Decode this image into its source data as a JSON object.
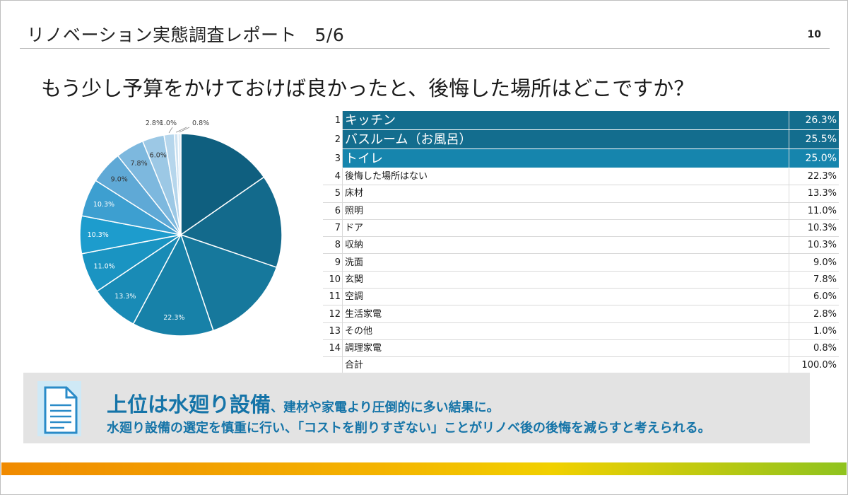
{
  "header": {
    "title": "リノベーション実態調査レポート　5/6",
    "page_number": "10"
  },
  "question": "もう少し予算をかけておけば良かったと、後悔した場所はどこですか？",
  "chart_data": {
    "type": "pie",
    "slices": [
      {
        "label": "キッチン",
        "value": 26.3,
        "display": "26.3%",
        "color": "#0f5f7f"
      },
      {
        "label": "バスルーム（お風呂）",
        "value": 25.5,
        "display": "25.5%",
        "color": "#136a8c"
      },
      {
        "label": "トイレ",
        "value": 25.0,
        "display": "25.0%",
        "color": "#16789c"
      },
      {
        "label": "後悔した場所はない",
        "value": 22.3,
        "display": "22.3%",
        "color": "#1781a8"
      },
      {
        "label": "床材",
        "value": 13.3,
        "display": "13.3%",
        "color": "#198bb6"
      },
      {
        "label": "照明",
        "value": 11.0,
        "display": "11.0%",
        "color": "#1a94c2"
      },
      {
        "label": "ドア",
        "value": 10.3,
        "display": "10.3%",
        "color": "#1d9ccd"
      },
      {
        "label": "収納",
        "value": 10.3,
        "display": "10.3%",
        "color": "#3d9fd0"
      },
      {
        "label": "洗面",
        "value": 9.0,
        "display": "9.0%",
        "color": "#5fa9d6"
      },
      {
        "label": "玄関",
        "value": 7.8,
        "display": "7.8%",
        "color": "#7db8de"
      },
      {
        "label": "空調",
        "value": 6.0,
        "display": "6.0%",
        "color": "#9cc8e5"
      },
      {
        "label": "生活家電",
        "value": 2.8,
        "display": "2.8%",
        "color": "#b6d6ec"
      },
      {
        "label": "その他",
        "value": 1.0,
        "display": "1.0%",
        "color": "#cde2f1"
      },
      {
        "label": "調理家電",
        "value": 0.8,
        "display": "0.8%",
        "color": "#e0edf7"
      }
    ]
  },
  "table": {
    "rows": [
      {
        "rank": "1",
        "name": "キッチン",
        "pct": "26.3%"
      },
      {
        "rank": "2",
        "name": "バスルーム（お風呂）",
        "pct": "25.5%"
      },
      {
        "rank": "3",
        "name": "トイレ",
        "pct": "25.0%"
      },
      {
        "rank": "4",
        "name": "後悔した場所はない",
        "pct": "22.3%"
      },
      {
        "rank": "5",
        "name": "床材",
        "pct": "13.3%"
      },
      {
        "rank": "6",
        "name": "照明",
        "pct": "11.0%"
      },
      {
        "rank": "7",
        "name": "ドア",
        "pct": "10.3%"
      },
      {
        "rank": "8",
        "name": "収納",
        "pct": "10.3%"
      },
      {
        "rank": "9",
        "name": "洗面",
        "pct": "9.0%"
      },
      {
        "rank": "10",
        "name": "玄関",
        "pct": "7.8%"
      },
      {
        "rank": "11",
        "name": "空調",
        "pct": "6.0%"
      },
      {
        "rank": "12",
        "name": "生活家電",
        "pct": "2.8%"
      },
      {
        "rank": "13",
        "name": "その他",
        "pct": "1.0%"
      },
      {
        "rank": "14",
        "name": "調理家電",
        "pct": "0.8%"
      }
    ],
    "total": {
      "name": "合計",
      "pct": "100.0%"
    }
  },
  "banner": {
    "headline": "上位は水廻り設備",
    "headline_suffix": "、建材や家電より圧倒的に多い結果に。",
    "line2": "水廻り設備の選定を慎重に行い、「コストを削りすぎない」ことがリノベ後の後悔を減らすと考えられる。",
    "icon": "document-icon"
  },
  "colors": {
    "accent": "#1574a8",
    "table_highlight": "#136d8e",
    "banner_bg": "#e3e3e3"
  }
}
